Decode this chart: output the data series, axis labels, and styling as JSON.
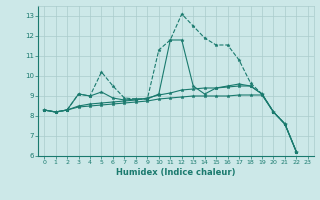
{
  "title": "",
  "xlabel": "Humidex (Indice chaleur)",
  "bg_color": "#cce8e8",
  "grid_color": "#aacccc",
  "line_color": "#1a7a6e",
  "xlim": [
    -0.5,
    23.5
  ],
  "ylim": [
    6,
    13.5
  ],
  "yticks": [
    6,
    7,
    8,
    9,
    10,
    11,
    12,
    13
  ],
  "xticks": [
    0,
    1,
    2,
    3,
    4,
    5,
    6,
    7,
    8,
    9,
    10,
    11,
    12,
    13,
    14,
    15,
    16,
    17,
    18,
    19,
    20,
    21,
    22,
    23
  ],
  "lines": [
    {
      "x": [
        0,
        1,
        2,
        3,
        4,
        5,
        6,
        7,
        8,
        9,
        10,
        11,
        12,
        13,
        14,
        15,
        16,
        17,
        18,
        19,
        20,
        21,
        22
      ],
      "y": [
        8.3,
        8.2,
        8.3,
        9.1,
        9.0,
        10.2,
        9.5,
        8.9,
        8.85,
        8.85,
        11.3,
        11.8,
        13.1,
        12.5,
        11.9,
        11.55,
        11.55,
        10.8,
        9.65,
        9.1,
        8.2,
        7.6,
        6.2
      ],
      "style": "--"
    },
    {
      "x": [
        0,
        1,
        2,
        3,
        4,
        5,
        6,
        7,
        8,
        9,
        10,
        11,
        12,
        13,
        14,
        15,
        16,
        17,
        18,
        19,
        20,
        21,
        22
      ],
      "y": [
        8.3,
        8.2,
        8.3,
        9.1,
        9.0,
        9.2,
        8.9,
        8.8,
        8.85,
        8.85,
        9.1,
        11.8,
        11.8,
        9.5,
        9.1,
        9.4,
        9.5,
        9.6,
        9.5,
        9.1,
        8.2,
        7.6,
        6.2
      ],
      "style": "-"
    },
    {
      "x": [
        0,
        1,
        2,
        3,
        4,
        5,
        6,
        7,
        8,
        9,
        10,
        11,
        12,
        13,
        14,
        15,
        16,
        17,
        18,
        19,
        20,
        21,
        22
      ],
      "y": [
        8.3,
        8.2,
        8.3,
        8.5,
        8.6,
        8.65,
        8.7,
        8.75,
        8.8,
        8.9,
        9.05,
        9.15,
        9.3,
        9.35,
        9.4,
        9.4,
        9.45,
        9.5,
        9.5,
        9.1,
        8.2,
        7.6,
        6.2
      ],
      "style": "-"
    },
    {
      "x": [
        0,
        1,
        2,
        3,
        4,
        5,
        6,
        7,
        8,
        9,
        10,
        11,
        12,
        13,
        14,
        15,
        16,
        17,
        18,
        19,
        20,
        21,
        22
      ],
      "y": [
        8.3,
        8.2,
        8.3,
        8.45,
        8.5,
        8.55,
        8.6,
        8.65,
        8.7,
        8.75,
        8.85,
        8.9,
        8.95,
        9.0,
        9.0,
        9.0,
        9.0,
        9.05,
        9.05,
        9.05,
        8.2,
        7.6,
        6.2
      ],
      "style": "-"
    }
  ]
}
